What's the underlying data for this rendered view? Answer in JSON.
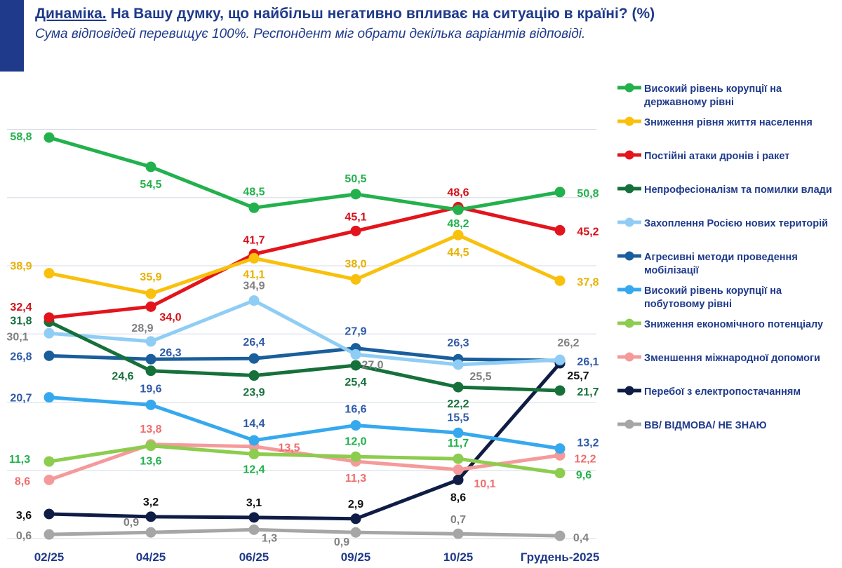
{
  "header": {
    "title_prefix": "Динаміка.",
    "title_rest": " На Вашу думку, що найбільш негативно впливає на ситуацію в країні? (%)",
    "subtitle": "Сума відповідей перевищує 100%. Респондент міг обрати декілька варіантів відповіді."
  },
  "chart_data": {
    "type": "line",
    "title": "Динаміка. На Вашу думку, що найбільш негативно впливає на ситуацію в країні? (%)",
    "categories": [
      "02/25",
      "04/25",
      "06/25",
      "09/25",
      "10/25",
      "Грудень-2025"
    ],
    "ylim": [
      0,
      62
    ],
    "grid": true,
    "legend": "right",
    "series": [
      {
        "name": "Високий рівень корупції на державному рівні",
        "color": "#22b14c",
        "labelColor": "#22b14c",
        "values": [
          58.8,
          54.5,
          48.5,
          50.5,
          48.2,
          50.8
        ],
        "labels": [
          "58,8",
          "54,5",
          "48,5",
          "50,5",
          "48,2",
          "50,8"
        ]
      },
      {
        "name": "Зниження рівня життя населення",
        "color": "#f9c00c",
        "labelColor": "#e8b000",
        "values": [
          38.9,
          35.9,
          41.1,
          38.0,
          44.5,
          37.8
        ],
        "labels": [
          "38,9",
          "35,9",
          "41,1",
          "38,0",
          "44,5",
          "37,8"
        ]
      },
      {
        "name": "Постійні атаки дронів і ракет",
        "color": "#e3141c",
        "labelColor": "#d40f17",
        "values": [
          32.4,
          34.0,
          41.7,
          45.1,
          48.6,
          45.2
        ],
        "labels": [
          "32,4",
          "34,0",
          "41,7",
          "45,1",
          "48,6",
          "45,2"
        ]
      },
      {
        "name": "Непрофесіоналізм та помилки влади",
        "color": "#16703a",
        "labelColor": "#16703a",
        "values": [
          31.8,
          24.6,
          23.9,
          25.4,
          22.2,
          21.7
        ],
        "labels": [
          "31,8",
          "24,6",
          "23,9",
          "25,4",
          "22,2",
          "21,7"
        ]
      },
      {
        "name": "Захоплення Росією нових територій",
        "color": "#8fcdf5",
        "labelColor": "#808080",
        "values": [
          30.1,
          28.9,
          34.9,
          27.0,
          25.5,
          26.2
        ],
        "labels": [
          "30,1",
          "28,9",
          "34,9",
          "27,0",
          "25,5",
          "26,2"
        ]
      },
      {
        "name": "Агресивні методи проведення мобілізації",
        "color": "#1a5e9c",
        "labelColor": "#2e5aa8",
        "values": [
          26.8,
          26.3,
          26.4,
          27.9,
          26.3,
          26.1
        ],
        "labels": [
          "26,8",
          "26,3",
          "26,4",
          "27,9",
          "26,3",
          "26,1"
        ]
      },
      {
        "name": "Високий рівень корупції на побутовому рівні",
        "color": "#36a9ee",
        "labelColor": "#2e5aa8",
        "values": [
          20.7,
          19.6,
          14.4,
          16.6,
          15.5,
          13.2
        ],
        "labels": [
          "20,7",
          "19,6",
          "14,4",
          "16,6",
          "15,5",
          "13,2"
        ]
      },
      {
        "name": "Зниження економічного потенціалу",
        "color": "#8ccc4e",
        "labelColor": "#22b14c",
        "values": [
          11.3,
          13.6,
          12.4,
          12.0,
          11.7,
          9.6
        ],
        "labels": [
          "11,3",
          "13,6",
          "12,4",
          "12,0",
          "11,7",
          "9,6"
        ]
      },
      {
        "name": "Зменшення міжнародної допомоги",
        "color": "#f59a9a",
        "labelColor": "#ee6e6e",
        "values": [
          8.6,
          13.8,
          13.5,
          11.3,
          10.1,
          12.2
        ],
        "labels": [
          "8,6",
          "13,8",
          "13,5",
          "11,3",
          "10,1",
          "12,2"
        ]
      },
      {
        "name": "Перебої з електропостачанням",
        "color": "#0f1d46",
        "labelColor": "#111111",
        "values": [
          3.6,
          3.2,
          3.1,
          2.9,
          8.6,
          25.7
        ],
        "labels": [
          "3,6",
          "3,2",
          "3,1",
          "2,9",
          "8,6",
          "25,7"
        ]
      },
      {
        "name": "ВВ/ ВІДМОВА/ НЕ ЗНАЮ",
        "color": "#a6a6a6",
        "labelColor": "#808080",
        "values": [
          0.6,
          0.9,
          1.3,
          0.9,
          0.7,
          0.4
        ],
        "labels": [
          "0,6",
          "0,9",
          "1,3",
          "0,9",
          "0,7",
          "0,4"
        ]
      }
    ]
  },
  "legend": {
    "items": [
      "Високий рівень корупції на державному рівні",
      "Зниження рівня життя населення",
      "Постійні атаки дронів і ракет",
      "Непрофесіоналізм та помилки влади",
      "Захоплення Росією нових територій",
      "Агресивні методи проведення мобілізації",
      "Високий рівень корупції на побутовому рівні",
      "Зниження економічного потенціалу",
      "Зменшення міжнародної допомоги",
      "Перебої з електропостачанням",
      "ВВ/ ВІДМОВА/ НЕ ЗНАЮ"
    ]
  }
}
